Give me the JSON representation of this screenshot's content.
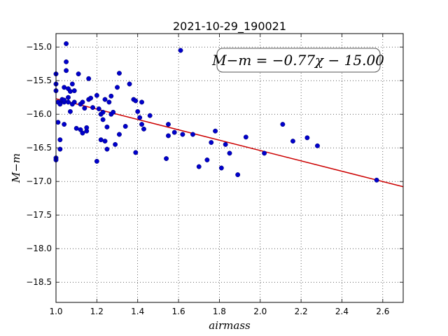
{
  "chart_data": {
    "type": "scatter",
    "title": "2021-10-29_190021",
    "xlabel": "airmass",
    "ylabel": "M−m",
    "xlim": [
      1.0,
      2.7
    ],
    "ylim": [
      -18.8,
      -14.8
    ],
    "xticks": [
      1.0,
      1.2,
      1.4,
      1.6,
      1.8,
      2.0,
      2.2,
      2.4,
      2.6
    ],
    "yticks": [
      -15.0,
      -15.5,
      -16.0,
      -16.5,
      -17.0,
      -17.5,
      -18.0,
      -18.5
    ],
    "xtick_labels": [
      "1.0",
      "1.2",
      "1.4",
      "1.6",
      "1.8",
      "2.0",
      "2.2",
      "2.4",
      "2.6"
    ],
    "ytick_labels": [
      "−15.0",
      "−15.5",
      "−16.0",
      "−16.5",
      "−17.0",
      "−17.5",
      "−18.0",
      "−18.5"
    ],
    "grid": true,
    "annotation": "M−m = −0.77χ − 15.00",
    "annotation_position": "top-right",
    "fit": {
      "slope": -0.77,
      "intercept": -15.0,
      "color": "#cc0000"
    },
    "point_color": "#0000cc",
    "series": [
      {
        "x": [
          1.0,
          1.0,
          1.0,
          1.0,
          1.0,
          1.01,
          1.01,
          1.02,
          1.02,
          1.02,
          1.03,
          1.03,
          1.04,
          1.04,
          1.04,
          1.04,
          1.05,
          1.05,
          1.05,
          1.06,
          1.06,
          1.06,
          1.07,
          1.07,
          1.08,
          1.08,
          1.09,
          1.09,
          1.1,
          1.11,
          1.12,
          1.12,
          1.13,
          1.13,
          1.14,
          1.15,
          1.15,
          1.16,
          1.16,
          1.17,
          1.18,
          1.2,
          1.2,
          1.21,
          1.22,
          1.22,
          1.23,
          1.23,
          1.24,
          1.24,
          1.25,
          1.25,
          1.26,
          1.27,
          1.27,
          1.28,
          1.29,
          1.3,
          1.31,
          1.31,
          1.34,
          1.36,
          1.38,
          1.39,
          1.39,
          1.4,
          1.41,
          1.42,
          1.42,
          1.43,
          1.46,
          1.54,
          1.55,
          1.55,
          1.58,
          1.61,
          1.62,
          1.67,
          1.7,
          1.74,
          1.76,
          1.78,
          1.81,
          1.83,
          1.85,
          1.89,
          1.93,
          2.02,
          2.11,
          2.16,
          2.23,
          2.28,
          2.57
        ],
        "y": [
          -15.4,
          -15.55,
          -15.65,
          -16.65,
          -16.68,
          -16.12,
          -15.82,
          -16.52,
          -16.38,
          -15.85,
          -15.8,
          -15.78,
          -15.6,
          -16.15,
          -15.82,
          -15.79,
          -14.95,
          -15.22,
          -15.35,
          -15.75,
          -15.62,
          -15.82,
          -15.96,
          -15.66,
          -15.55,
          -15.85,
          -15.82,
          -15.65,
          -16.21,
          -15.4,
          -15.85,
          -16.23,
          -16.28,
          -15.82,
          -15.91,
          -16.25,
          -16.2,
          -15.78,
          -15.47,
          -15.76,
          -15.9,
          -16.7,
          -15.72,
          -15.92,
          -16.0,
          -16.38,
          -15.97,
          -16.08,
          -16.4,
          -15.78,
          -16.19,
          -16.52,
          -15.82,
          -15.73,
          -16.0,
          -15.97,
          -16.45,
          -15.6,
          -15.39,
          -16.3,
          -16.18,
          -15.55,
          -15.78,
          -15.8,
          -16.57,
          -15.96,
          -16.05,
          -15.82,
          -16.15,
          -16.22,
          -16.02,
          -16.66,
          -16.15,
          -16.32,
          -16.27,
          -15.05,
          -16.3,
          -16.3,
          -16.78,
          -16.68,
          -16.42,
          -16.25,
          -16.8,
          -16.45,
          -16.58,
          -16.9,
          -16.34,
          -16.58,
          -16.15,
          -16.4,
          -16.35,
          -16.47,
          -16.98
        ]
      }
    ]
  }
}
